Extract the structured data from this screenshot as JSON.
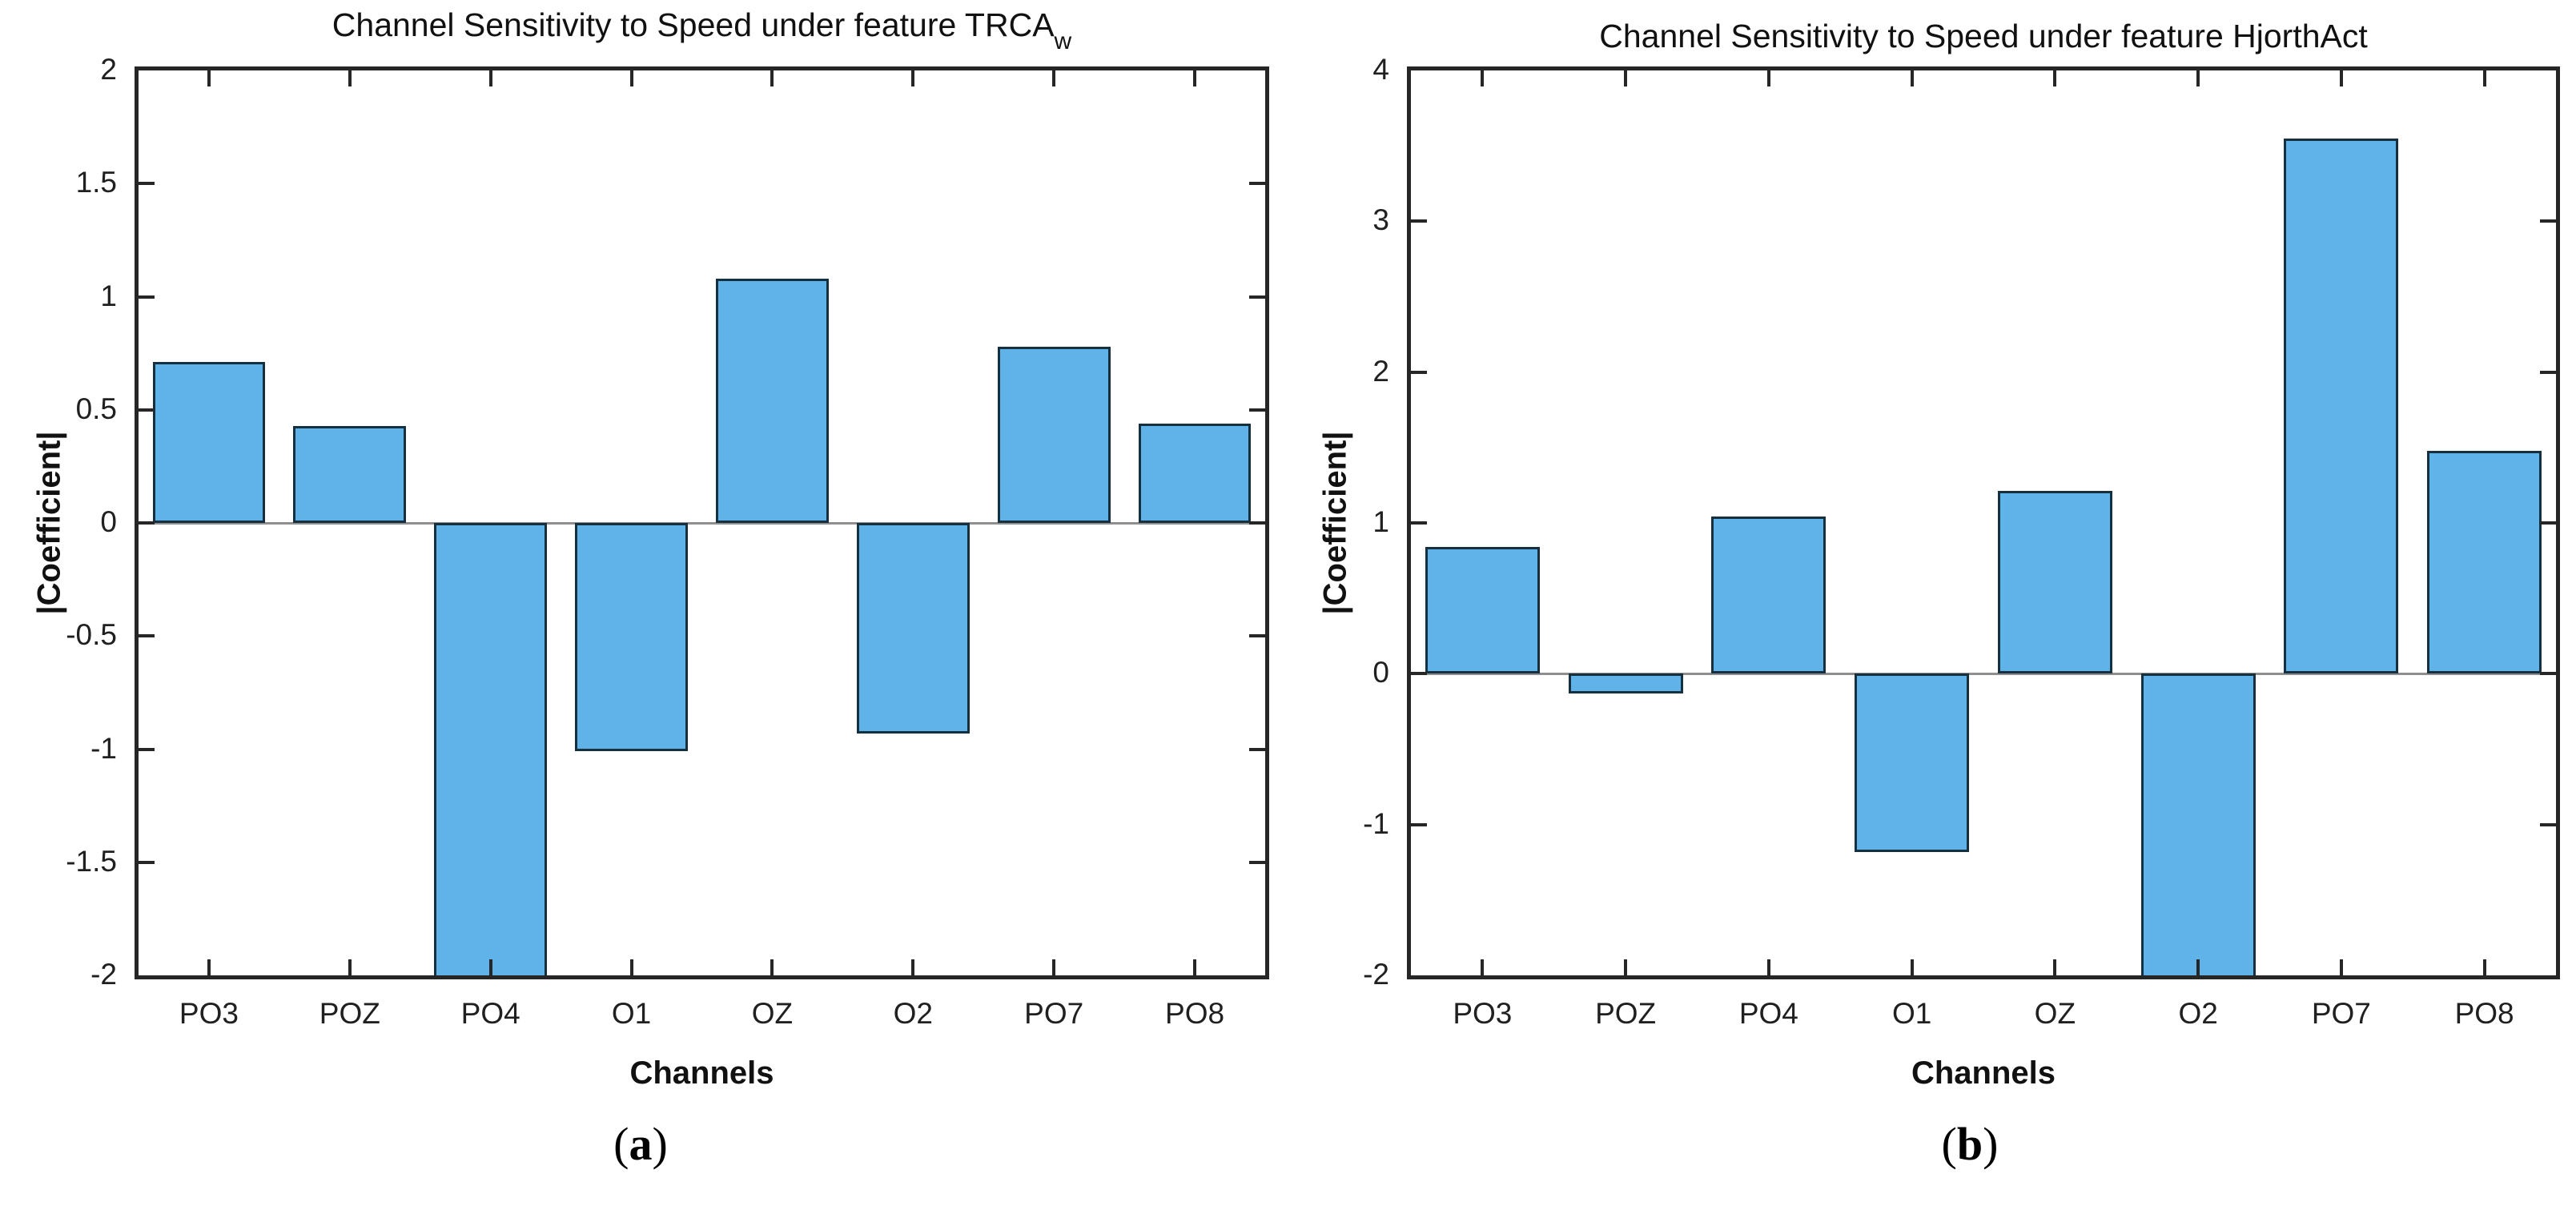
{
  "figure": {
    "colors": {
      "bar_fill": "#5FB3E9",
      "bar_edge": "#17303F",
      "axis": "#262626",
      "zero_line": "#8F8F8F",
      "text": "#111111"
    }
  },
  "chart_data": [
    {
      "type": "bar",
      "title": "Channel Sensitivity to Speed under feature TRCA",
      "title_subscript": "w",
      "ylabel": "|Coefficient|",
      "xlabel": "Channels",
      "caption_open": "(",
      "caption_letter": "a",
      "caption_close": ")",
      "categories": [
        "PO3",
        "POZ",
        "PO4",
        "O1",
        "OZ",
        "O2",
        "PO7",
        "PO8"
      ],
      "values": [
        0.71,
        0.43,
        -2,
        -1.01,
        1.08,
        -0.93,
        0.78,
        0.44
      ],
      "clipped_at_axis": [
        "PO4"
      ],
      "ylim": [
        -2,
        2
      ],
      "yticks": [
        2,
        1.5,
        1,
        0.5,
        0,
        -0.5,
        -1,
        -1.5,
        -2
      ],
      "ytick_labels": [
        "2",
        "1.5",
        "1",
        "0.5",
        "0",
        "-0.5",
        "-1",
        "-1.5",
        "-2"
      ],
      "bar_width_fraction": 0.8,
      "grid": "off",
      "legend": "none"
    },
    {
      "type": "bar",
      "title": "Channel Sensitivity to Speed under feature HjorthAct",
      "title_subscript": "",
      "ylabel": "|Coefficient|",
      "xlabel": "Channels",
      "caption_open": "(",
      "caption_letter": "b",
      "caption_close": ")",
      "categories": [
        "PO3",
        "POZ",
        "PO4",
        "O1",
        "OZ",
        "O2",
        "PO7",
        "PO8"
      ],
      "values": [
        0.84,
        -0.13,
        1.04,
        -1.18,
        1.21,
        -2,
        3.55,
        1.48
      ],
      "clipped_at_axis": [
        "O2"
      ],
      "ylim": [
        -2,
        4
      ],
      "yticks": [
        4,
        3,
        2,
        1,
        0,
        -1,
        -2
      ],
      "ytick_labels": [
        "4",
        "3",
        "2",
        "1",
        "0",
        "-1",
        "-2"
      ],
      "bar_width_fraction": 0.8,
      "grid": "off",
      "legend": "none"
    }
  ]
}
